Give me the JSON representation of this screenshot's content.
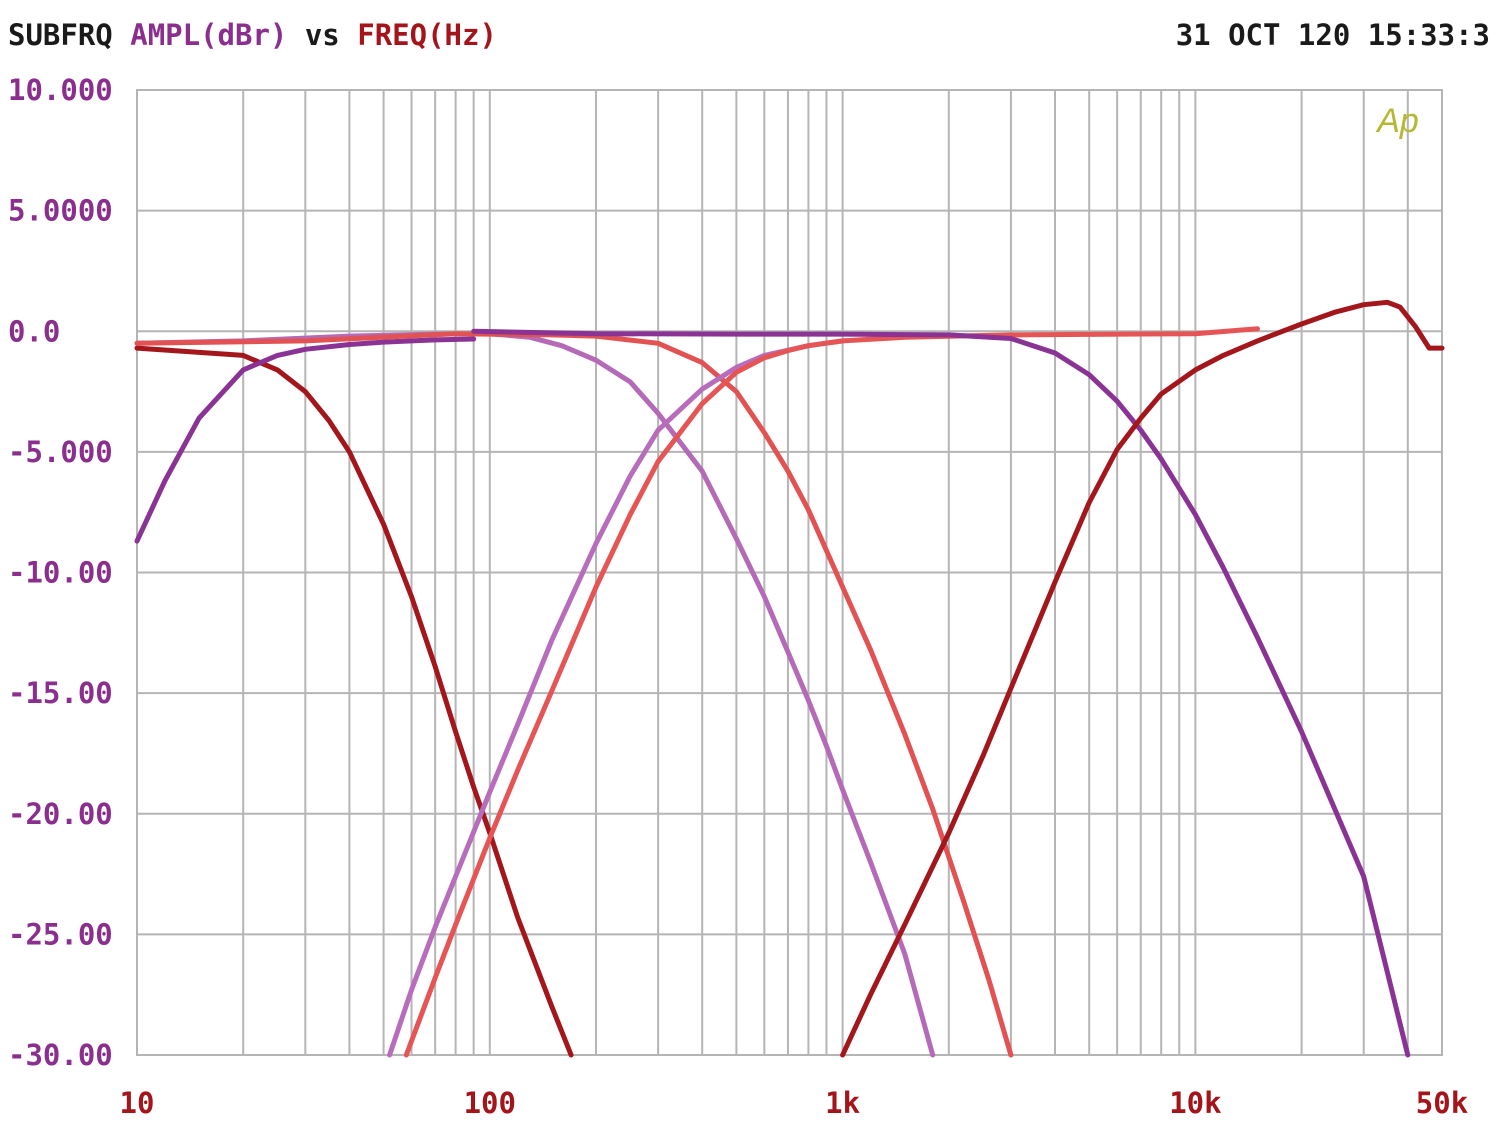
{
  "header": {
    "name": "SUBFRQ",
    "yquantity": "AMPL(dBr)",
    "vs": "vs",
    "xquantity": "FREQ(Hz)",
    "timestamp": "31 OCT 120 15:33:3"
  },
  "logo": "Ap",
  "colors": {
    "background": "#ffffff",
    "grid": "#b5b5b5",
    "ytick": "#8a2f8e",
    "xtick": "#a3151a",
    "header_name": "#1a1a1a",
    "logo": "#b4b832"
  },
  "chart_data": {
    "type": "line",
    "xscale": "log",
    "xlim": [
      10,
      50000
    ],
    "ylim": [
      -30,
      10
    ],
    "grid": true,
    "xlabel": "",
    "ylabel": "",
    "xtick_labels": [
      {
        "x": 10,
        "label": "10"
      },
      {
        "x": 100,
        "label": "100"
      },
      {
        "x": 1000,
        "label": "1k"
      },
      {
        "x": 10000,
        "label": "10k"
      },
      {
        "x": 50000,
        "label": "50k"
      }
    ],
    "ytick_labels": [
      {
        "y": 10,
        "label": "10.000"
      },
      {
        "y": 5,
        "label": "5.0000"
      },
      {
        "y": 0,
        "label": "0.0"
      },
      {
        "y": -5,
        "label": "-5.000"
      },
      {
        "y": -10,
        "label": "-10.00"
      },
      {
        "y": -15,
        "label": "-15.00"
      },
      {
        "y": -20,
        "label": "-20.00"
      },
      {
        "y": -25,
        "label": "-25.00"
      },
      {
        "y": -30,
        "label": "-30.00"
      }
    ],
    "series": [
      {
        "color": "#a3161c",
        "x": [
          10,
          20,
          25,
          30,
          35,
          40,
          50,
          60,
          70,
          80,
          90,
          100,
          120,
          150,
          170
        ],
        "y": [
          -0.7,
          -1.0,
          -1.6,
          -2.5,
          -3.7,
          -5.0,
          -8.0,
          -11.0,
          -13.9,
          -16.6,
          -18.9,
          -20.8,
          -24.3,
          -28.0,
          -30.0
        ]
      },
      {
        "color": "#8a3395",
        "x": [
          10,
          12,
          15,
          20,
          25,
          30,
          40,
          50,
          60,
          70,
          90
        ],
        "y": [
          -8.7,
          -6.2,
          -3.6,
          -1.6,
          -1.0,
          -0.75,
          -0.55,
          -0.45,
          -0.4,
          -0.36,
          -0.32
        ]
      },
      {
        "color": "#b56ab8",
        "x": [
          10,
          20,
          40,
          70,
          100,
          130,
          160,
          200,
          250,
          300,
          400,
          500,
          600,
          700,
          800,
          900,
          1000,
          1200,
          1500,
          1800
        ],
        "y": [
          -0.5,
          -0.4,
          -0.2,
          -0.12,
          -0.1,
          -0.25,
          -0.6,
          -1.2,
          -2.1,
          -3.4,
          -5.8,
          -8.6,
          -11.0,
          -13.3,
          -15.3,
          -17.2,
          -19.0,
          -22.0,
          -25.8,
          -30.0
        ]
      },
      {
        "color": "#e25253",
        "x": [
          10,
          30,
          80,
          150,
          200,
          300,
          400,
          500,
          600,
          700,
          800,
          1000,
          1200,
          1500,
          1800,
          2200,
          2600,
          3000
        ],
        "y": [
          -0.5,
          -0.4,
          -0.1,
          -0.15,
          -0.2,
          -0.5,
          -1.3,
          -2.5,
          -4.2,
          -5.8,
          -7.4,
          -10.6,
          -13.2,
          -16.7,
          -19.8,
          -23.6,
          -26.9,
          -30.0
        ]
      },
      {
        "color": "#b86cbc",
        "x": [
          52,
          60,
          70,
          80,
          100,
          120,
          150,
          200,
          250,
          300,
          400,
          500,
          600,
          800,
          1000
        ],
        "y": [
          -30.0,
          -27.3,
          -24.7,
          -22.6,
          -19.1,
          -16.3,
          -12.8,
          -8.8,
          -6.0,
          -4.1,
          -2.4,
          -1.5,
          -1.0,
          -0.6,
          -0.4
        ]
      },
      {
        "color": "#e55555",
        "x": [
          58,
          70,
          80,
          100,
          120,
          150,
          200,
          250,
          300,
          400,
          500,
          600,
          700,
          800,
          1000,
          1500,
          3000,
          10000,
          15000
        ],
        "y": [
          -30.0,
          -26.8,
          -24.6,
          -21.0,
          -18.2,
          -14.9,
          -10.6,
          -7.6,
          -5.4,
          -3.0,
          -1.7,
          -1.1,
          -0.8,
          -0.6,
          -0.4,
          -0.25,
          -0.15,
          -0.1,
          0.1
        ]
      },
      {
        "color": "#8a3395",
        "x": [
          90,
          200,
          500,
          1000,
          2000,
          3000,
          4000,
          5000,
          6000,
          7000,
          8000,
          10000,
          12000,
          15000,
          20000,
          30000,
          40000
        ],
        "y": [
          0.0,
          -0.1,
          -0.12,
          -0.12,
          -0.15,
          -0.3,
          -0.9,
          -1.8,
          -2.9,
          -4.1,
          -5.3,
          -7.6,
          -9.8,
          -12.7,
          -16.6,
          -22.6,
          -30.0
        ]
      },
      {
        "color": "#a3161c",
        "x": [
          1000,
          1200,
          1500,
          2000,
          2500,
          3000,
          4000,
          5000,
          6000,
          7000,
          8000,
          10000,
          12000,
          15000,
          20000,
          25000,
          30000,
          35000,
          38000,
          42000,
          46000,
          50000
        ],
        "y": [
          -30.0,
          -27.5,
          -24.6,
          -20.8,
          -17.6,
          -14.8,
          -10.4,
          -7.1,
          -4.9,
          -3.6,
          -2.6,
          -1.6,
          -1.0,
          -0.4,
          0.3,
          0.8,
          1.1,
          1.2,
          1.0,
          0.2,
          -0.7,
          -0.7
        ]
      }
    ]
  }
}
